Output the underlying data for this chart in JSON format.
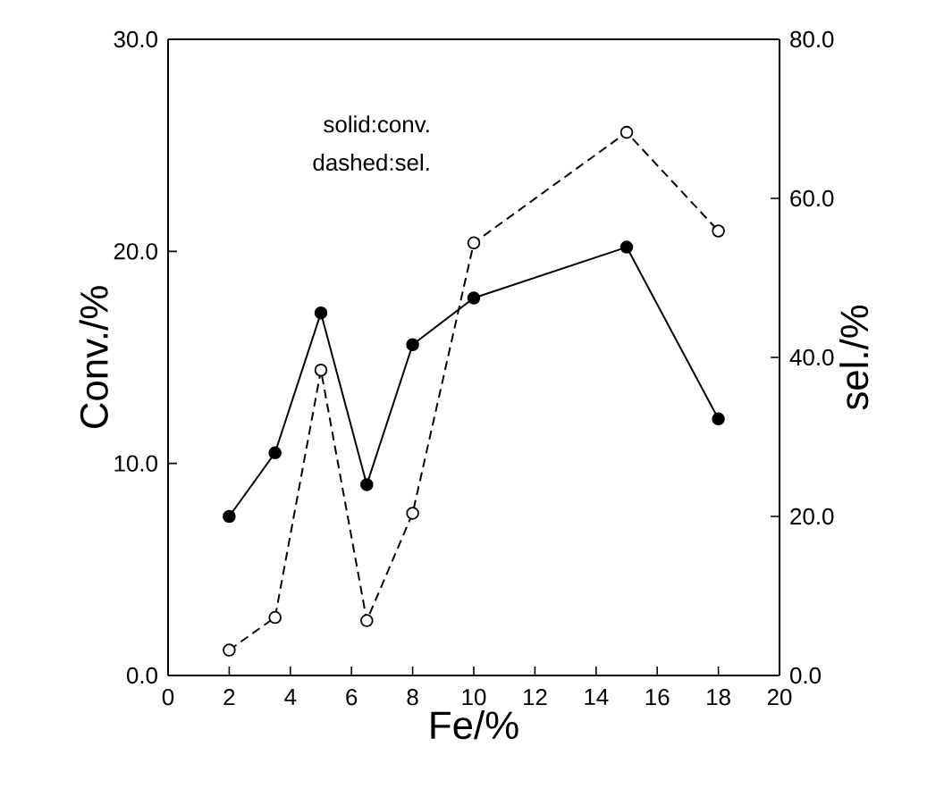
{
  "chart_data": {
    "type": "line",
    "xlabel": "Fe/%",
    "ylabel": "Conv./%",
    "y2label": "sel./%",
    "xlim": [
      0,
      20
    ],
    "xticks": [
      0,
      2,
      4,
      6,
      8,
      10,
      12,
      14,
      16,
      18,
      20
    ],
    "ylim": [
      0,
      30
    ],
    "yticks": [
      {
        "value": 0,
        "label": "0.0"
      },
      {
        "value": 10,
        "label": "10.0"
      },
      {
        "value": 20,
        "label": "20.0"
      },
      {
        "value": 30,
        "label": "30.0"
      }
    ],
    "y2lim": [
      0,
      80
    ],
    "y2ticks": [
      {
        "value": 0,
        "label": "0.0"
      },
      {
        "value": 20,
        "label": "20.0"
      },
      {
        "value": 40,
        "label": "40.0"
      },
      {
        "value": 60,
        "label": "60.0"
      },
      {
        "value": 80,
        "label": "80.0"
      }
    ],
    "grid": false,
    "annotations": [
      "solid:conv.",
      "dashed:sel."
    ],
    "series": [
      {
        "color": "#000000",
        "x": [
          2,
          3.5,
          5,
          6.5,
          8,
          10,
          15,
          18
        ],
        "values": [
          7.5,
          10.5,
          17.1,
          9.0,
          15.6,
          17.8,
          20.2,
          12.1
        ],
        "marker": "circle",
        "line_style": "solid"
      },
      {
        "color": "#000000",
        "axis": "y2",
        "x": [
          2,
          3.5,
          5,
          6.5,
          8,
          10,
          15,
          18
        ],
        "values": [
          3.2,
          7.3,
          38.4,
          6.9,
          20.4,
          54.4,
          68.3,
          55.9
        ],
        "marker": "circle",
        "line_style": "dashed"
      }
    ]
  }
}
